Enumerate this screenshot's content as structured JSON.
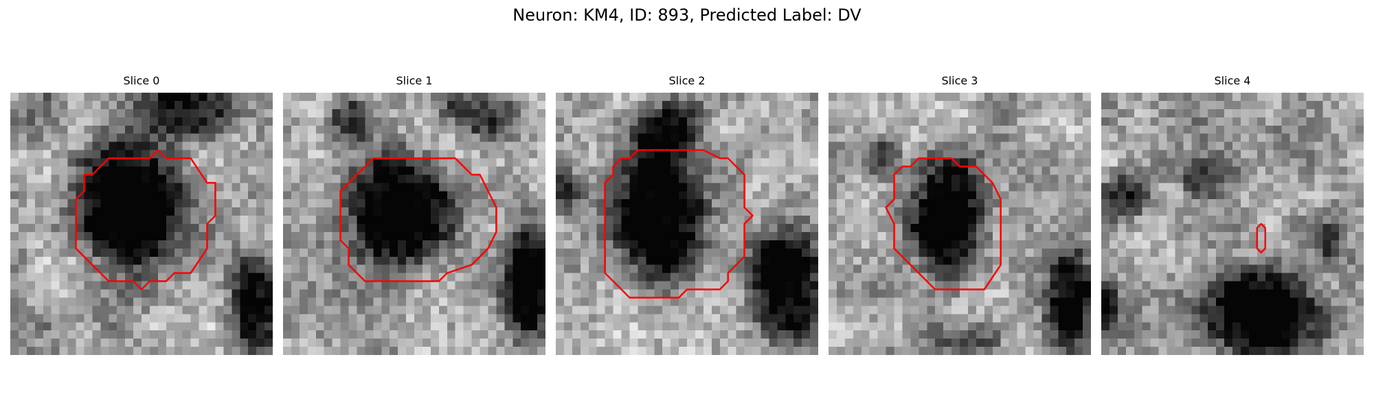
{
  "figure": {
    "title": "Neuron: KM4, ID: 893, Predicted Label: DV"
  },
  "panels": [
    {
      "label": "Slice 0",
      "grid_size": 32,
      "dark_blobs": [
        {
          "cx": 14.5,
          "cy": 14.0,
          "rx": 7.0,
          "ry": 7.5,
          "strength": 0.85
        },
        {
          "cx": 21.0,
          "cy": 2.0,
          "rx": 6.0,
          "ry": 4.0,
          "strength": 0.6
        },
        {
          "cx": 30.0,
          "cy": 26.0,
          "rx": 3.0,
          "ry": 6.0,
          "strength": 0.65
        },
        {
          "cx": 3.0,
          "cy": 3.0,
          "rx": 4.0,
          "ry": 4.0,
          "strength": 0.2
        }
      ],
      "contour": [
        [
          18,
          7
        ],
        [
          19,
          8
        ],
        [
          22,
          8
        ],
        [
          24,
          11
        ],
        [
          25,
          11
        ],
        [
          25,
          15
        ],
        [
          24,
          16
        ],
        [
          24,
          19
        ],
        [
          22,
          22
        ],
        [
          20,
          22
        ],
        [
          19,
          23
        ],
        [
          17,
          23
        ],
        [
          16,
          24
        ],
        [
          15,
          23
        ],
        [
          12,
          23
        ],
        [
          11,
          22
        ],
        [
          8,
          19
        ],
        [
          8,
          13
        ],
        [
          9,
          12
        ],
        [
          9,
          10
        ],
        [
          10,
          10
        ],
        [
          11,
          9
        ],
        [
          12,
          8
        ],
        [
          17,
          8
        ]
      ],
      "colors": {
        "contour": "#ff0000"
      }
    },
    {
      "label": "Slice 1",
      "grid_size": 32,
      "dark_blobs": [
        {
          "cx": 14.0,
          "cy": 14.5,
          "rx": 6.5,
          "ry": 7.0,
          "strength": 0.8
        },
        {
          "cx": 24.0,
          "cy": 2.0,
          "rx": 5.0,
          "ry": 3.0,
          "strength": 0.45
        },
        {
          "cx": 30.0,
          "cy": 23.0,
          "rx": 3.0,
          "ry": 7.0,
          "strength": 0.7
        },
        {
          "cx": 8.0,
          "cy": 3.5,
          "rx": 2.5,
          "ry": 3.0,
          "strength": 0.45
        }
      ],
      "contour": [
        [
          11,
          8
        ],
        [
          21,
          8
        ],
        [
          23,
          10
        ],
        [
          24,
          10
        ],
        [
          25,
          12
        ],
        [
          26,
          14
        ],
        [
          26,
          17
        ],
        [
          25,
          19
        ],
        [
          23,
          21
        ],
        [
          20,
          22
        ],
        [
          19,
          23
        ],
        [
          10,
          23
        ],
        [
          8,
          21
        ],
        [
          8,
          19
        ],
        [
          7,
          18
        ],
        [
          7,
          12
        ],
        [
          8,
          11
        ],
        [
          10,
          9
        ]
      ],
      "colors": {
        "contour": "#ff0000"
      }
    },
    {
      "label": "Slice 2",
      "grid_size": 32,
      "dark_blobs": [
        {
          "cx": 12.5,
          "cy": 14.0,
          "rx": 5.5,
          "ry": 8.5,
          "strength": 0.85
        },
        {
          "cx": 28.0,
          "cy": 23.0,
          "rx": 4.5,
          "ry": 7.0,
          "strength": 0.8
        },
        {
          "cx": 14.0,
          "cy": 4.0,
          "rx": 4.0,
          "ry": 3.0,
          "strength": 0.5
        },
        {
          "cx": 1.0,
          "cy": 12.0,
          "rx": 2.0,
          "ry": 3.0,
          "strength": 0.35
        }
      ],
      "contour": [
        [
          10,
          7
        ],
        [
          18,
          7
        ],
        [
          20,
          8
        ],
        [
          21,
          8
        ],
        [
          23,
          10
        ],
        [
          23,
          14
        ],
        [
          24,
          15
        ],
        [
          23,
          16
        ],
        [
          23,
          20
        ],
        [
          21,
          22
        ],
        [
          21,
          23
        ],
        [
          20,
          24
        ],
        [
          16,
          24
        ],
        [
          15,
          25
        ],
        [
          11,
          25
        ],
        [
          9,
          25
        ],
        [
          6,
          22
        ],
        [
          6,
          11
        ],
        [
          7,
          10
        ],
        [
          7,
          9
        ],
        [
          8,
          8
        ],
        [
          9,
          8
        ]
      ],
      "colors": {
        "contour": "#ff0000"
      }
    },
    {
      "label": "Slice 3",
      "grid_size": 32,
      "dark_blobs": [
        {
          "cx": 14.5,
          "cy": 15.0,
          "rx": 4.5,
          "ry": 7.0,
          "strength": 0.8
        },
        {
          "cx": 29.5,
          "cy": 25.0,
          "rx": 3.0,
          "ry": 6.0,
          "strength": 0.75
        },
        {
          "cx": 6.5,
          "cy": 8.0,
          "rx": 2.5,
          "ry": 2.5,
          "strength": 0.45
        },
        {
          "cx": 17.0,
          "cy": 30.0,
          "rx": 4.0,
          "ry": 2.0,
          "strength": 0.4
        }
      ],
      "contour": [
        [
          10,
          9
        ],
        [
          11,
          8
        ],
        [
          15,
          8
        ],
        [
          16,
          9
        ],
        [
          18,
          9
        ],
        [
          20,
          11
        ],
        [
          21,
          13
        ],
        [
          21,
          21
        ],
        [
          19,
          24
        ],
        [
          13,
          24
        ],
        [
          11,
          22
        ],
        [
          9,
          20
        ],
        [
          8,
          19
        ],
        [
          8,
          18
        ],
        [
          8,
          16
        ],
        [
          7,
          14
        ],
        [
          8,
          13
        ],
        [
          8,
          10
        ],
        [
          9,
          9
        ]
      ],
      "colors": {
        "contour": "#ff0000"
      }
    },
    {
      "label": "Slice 4",
      "grid_size": 32,
      "dark_blobs": [
        {
          "cx": 19.5,
          "cy": 27.0,
          "rx": 7.0,
          "ry": 5.5,
          "strength": 0.85
        },
        {
          "cx": 3.0,
          "cy": 12.5,
          "rx": 3.0,
          "ry": 3.0,
          "strength": 0.45
        },
        {
          "cx": 13.0,
          "cy": 10.0,
          "rx": 3.5,
          "ry": 2.5,
          "strength": 0.4
        },
        {
          "cx": 0.5,
          "cy": 26.0,
          "rx": 2.0,
          "ry": 3.0,
          "strength": 0.55
        },
        {
          "cx": 27.5,
          "cy": 18.0,
          "rx": 2.0,
          "ry": 2.5,
          "strength": 0.35
        }
      ],
      "contour": [
        [
          19.5,
          16
        ],
        [
          20,
          16.5
        ],
        [
          20,
          19
        ],
        [
          19.5,
          19.5
        ],
        [
          19,
          19
        ],
        [
          19,
          16.5
        ]
      ],
      "colors": {
        "contour": "#ff0000"
      }
    }
  ]
}
